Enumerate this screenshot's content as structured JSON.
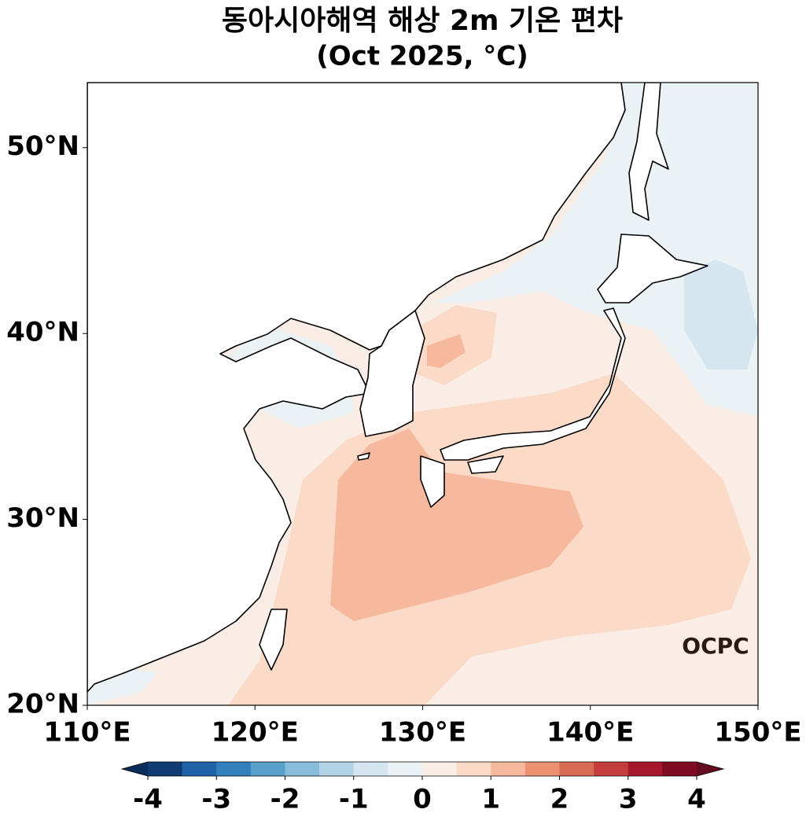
{
  "title": "동아시아해역 해상 2m 기온 편차",
  "subtitle": "(Oct 2025, °C)",
  "map": {
    "xlim": [
      110,
      150
    ],
    "ylim": [
      20,
      53.5
    ],
    "xticks": [
      {
        "value": 110,
        "label": "110°E"
      },
      {
        "value": 120,
        "label": "120°E"
      },
      {
        "value": 130,
        "label": "130°E"
      },
      {
        "value": 140,
        "label": "140°E"
      },
      {
        "value": 150,
        "label": "150°E"
      }
    ],
    "yticks": [
      {
        "value": 20,
        "label": "20°N"
      },
      {
        "value": 30,
        "label": "30°N"
      },
      {
        "value": 40,
        "label": "40°N"
      },
      {
        "value": 50,
        "label": "50°N"
      }
    ]
  },
  "colorbar": {
    "bounds": [
      -4,
      4
    ],
    "ticks": [
      -4,
      -3,
      -2,
      -1,
      0,
      1,
      2,
      3,
      4
    ],
    "colors": [
      "#0f3d73",
      "#1f62a7",
      "#3480bd",
      "#58a0ca",
      "#88bedc",
      "#b3d4e7",
      "#d5e6f0",
      "#ebf2f5",
      "#f9ede6",
      "#fcdac8",
      "#f7b99d",
      "#ec9171",
      "#d96a54",
      "#c33d3d",
      "#a6172b",
      "#7e0b22"
    ],
    "extend_colors": [
      "#0a2e5c",
      "#660a1f"
    ]
  },
  "logo": "OCPC"
}
